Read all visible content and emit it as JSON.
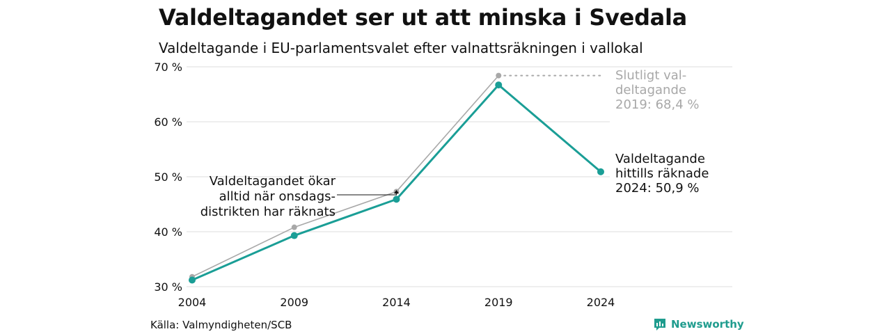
{
  "title": "Valdeltagandet ser ut att minska i Svedala",
  "subtitle": "Valdeltagande i EU-parlamentsvalet efter valnattsräkningen i vallokal",
  "source": "Källa: Valmyndigheten/SCB",
  "brand": "Newsworthy",
  "colors": {
    "counted": "#1a9e96",
    "final": "#a8a8a8",
    "grid": "#e3e3e3",
    "brand": "#1f9c8e"
  },
  "chart_data": {
    "type": "line",
    "x": [
      2004,
      2009,
      2014,
      2019,
      2024
    ],
    "xticks": [
      "2004",
      "2009",
      "2014",
      "2019",
      "2024"
    ],
    "ylim": [
      30,
      70
    ],
    "yticks": [
      "30 %",
      "40 %",
      "50 %",
      "60 %",
      "70 %"
    ],
    "yvalues": [
      30,
      40,
      50,
      60,
      70
    ],
    "grid": true,
    "series": [
      {
        "key": "final",
        "values": [
          31.8,
          40.8,
          47.3,
          68.4,
          null
        ]
      },
      {
        "key": "counted",
        "values": [
          31.2,
          39.3,
          45.9,
          66.7,
          50.9
        ]
      }
    ],
    "annotations": {
      "final": [
        "Slutligt val-",
        "deltagande",
        "2019: 68,4 %"
      ],
      "counted": [
        "Valdeltagande",
        "hittills räknade",
        "2024: 50,9 %"
      ],
      "note": [
        "Valdeltagandet ökar",
        "alltid när onsdags-",
        "distrikten har räknats"
      ]
    }
  }
}
